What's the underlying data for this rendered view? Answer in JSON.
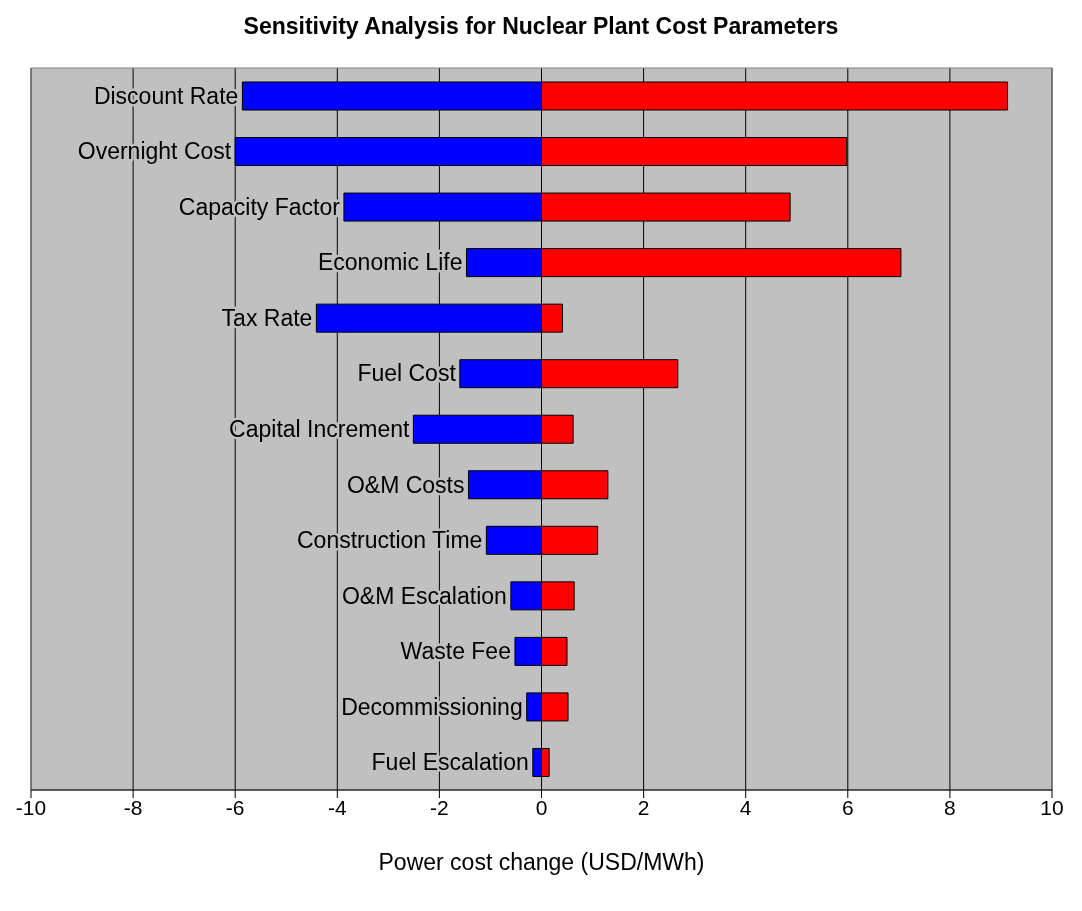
{
  "chart_data": {
    "type": "bar",
    "orientation": "horizontal",
    "stacked": true,
    "title": "Sensitivity Analysis for Nuclear Plant Cost Parameters",
    "xlabel": "Power cost change (USD/MWh)",
    "categories": [
      "Discount Rate",
      "Overnight Cost",
      "Capacity Factor",
      "Economic Life",
      "Tax Rate",
      "Fuel Cost",
      "Capital Increment",
      "O&M Costs",
      "Construction Time",
      "O&M Escalation",
      "Waste Fee",
      "Decommissioning",
      "Fuel Escalation"
    ],
    "series": [
      {
        "color": "#0000ff",
        "values": [
          -5.86,
          -6.0,
          -3.87,
          -1.47,
          -4.41,
          -1.6,
          -2.51,
          -1.43,
          -1.08,
          -0.6,
          -0.52,
          -0.29,
          -0.17
        ]
      },
      {
        "color": "#ff0000",
        "values": [
          9.13,
          5.98,
          4.87,
          7.04,
          0.41,
          2.67,
          0.62,
          1.3,
          1.1,
          0.64,
          0.5,
          0.52,
          0.15
        ]
      }
    ],
    "xlim": [
      -10,
      10
    ],
    "xticks": [
      -10,
      -8,
      -6,
      -4,
      -2,
      0,
      2,
      4,
      6,
      8,
      10
    ],
    "grid": "x",
    "legend": false
  }
}
